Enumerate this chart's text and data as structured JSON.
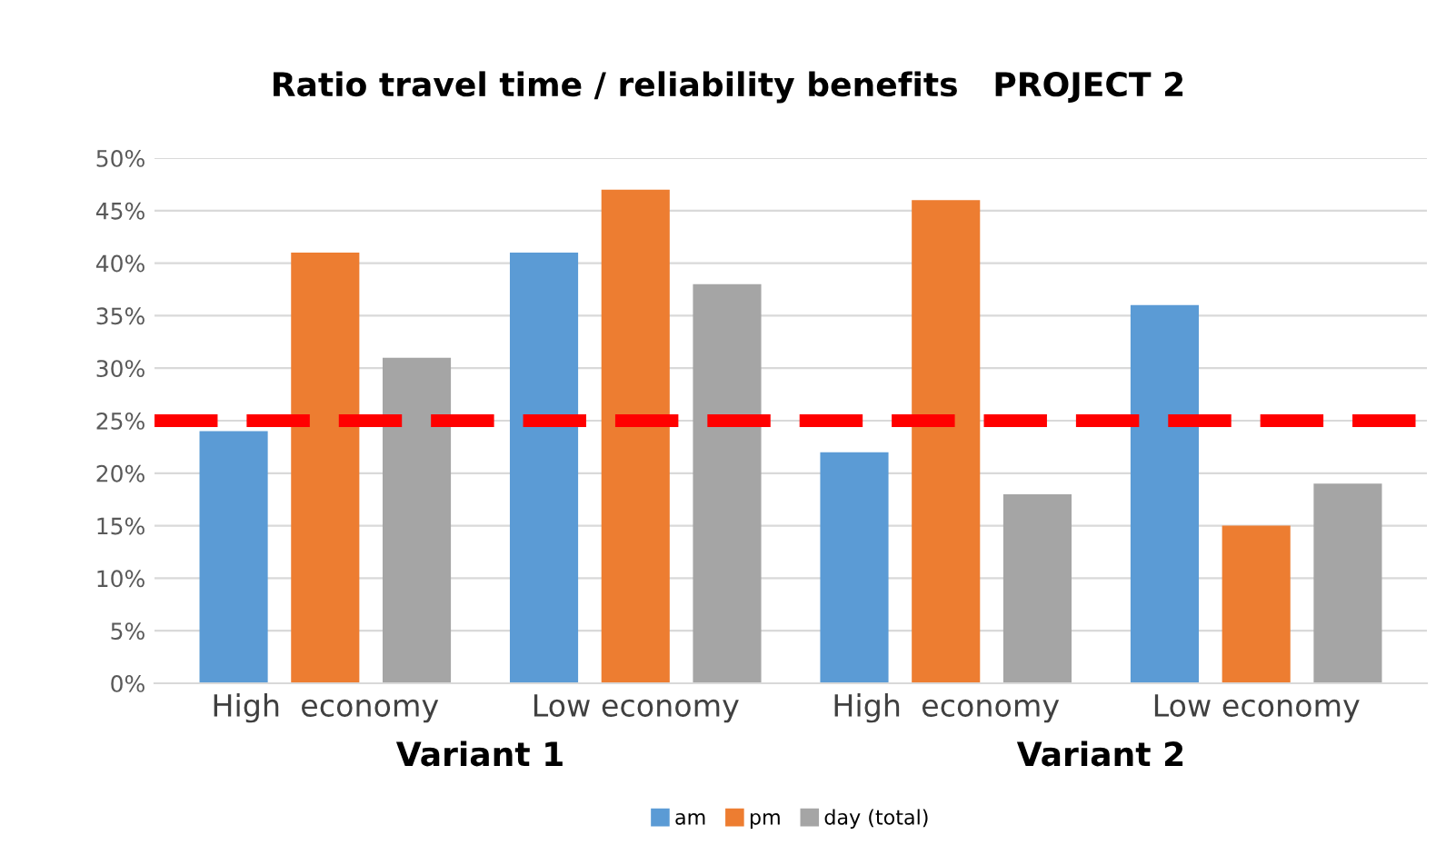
{
  "chart_data": {
    "type": "bar",
    "title": "Ratio travel time / reliability benefits   PROJECT 2",
    "categories": [
      "High  economy",
      "Low economy",
      "High  economy",
      "Low economy"
    ],
    "series": [
      {
        "name": "am",
        "color": "#5b9bd5",
        "values": [
          24,
          41,
          22,
          36
        ]
      },
      {
        "name": "pm",
        "color": "#ed7d31",
        "values": [
          41,
          47,
          46,
          15
        ]
      },
      {
        "name": "day (total)",
        "color": "#a5a5a5",
        "values": [
          31,
          38,
          18,
          19
        ]
      }
    ],
    "ylim": [
      0,
      50
    ],
    "yticks": [
      {
        "value": 0,
        "label": "0%"
      },
      {
        "value": 5,
        "label": "5%"
      },
      {
        "value": 10,
        "label": "10%"
      },
      {
        "value": 15,
        "label": "15%"
      },
      {
        "value": 20,
        "label": "20%"
      },
      {
        "value": 25,
        "label": "25%"
      },
      {
        "value": 30,
        "label": "30%"
      },
      {
        "value": 35,
        "label": "35%"
      },
      {
        "value": 40,
        "label": "40%"
      },
      {
        "value": 45,
        "label": "45%"
      },
      {
        "value": 50,
        "label": "50%"
      }
    ],
    "ref_lines": [
      {
        "axis": "y",
        "value": 25,
        "color": "#ff0000",
        "line_style": "dashed"
      }
    ],
    "annotations": [
      "Variant 1",
      "Variant 2"
    ],
    "grid": "y",
    "legend": "bottom"
  }
}
